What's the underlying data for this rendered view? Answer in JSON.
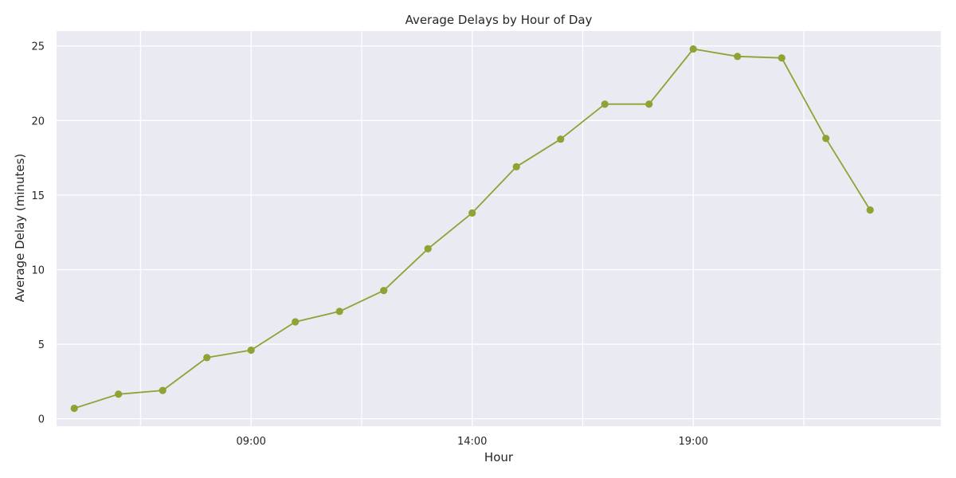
{
  "chart_data": {
    "type": "line",
    "title": "Average Delays by Hour of Day",
    "xlabel": "Hour",
    "ylabel": "Average Delay (minutes)",
    "x_tick_labels": [
      {
        "label": "09:00",
        "hour": 9
      },
      {
        "label": "14:00",
        "hour": 14
      },
      {
        "label": "19:00",
        "hour": 19
      }
    ],
    "minor_x_gridlines_hours": [
      6.5,
      11.5,
      16.5,
      21.5
    ],
    "y_ticks": [
      0,
      5,
      10,
      15,
      20,
      25
    ],
    "xlim_hours": [
      4.6,
      24.6
    ],
    "ylim": [
      -0.5,
      26
    ],
    "grid": true,
    "background_color": "#eaeaf2",
    "series": [
      {
        "color": "#8fa234",
        "x_hours": [
          5,
          6,
          7,
          8,
          9,
          10,
          11,
          12,
          13,
          14,
          15,
          16,
          17,
          18,
          19,
          20,
          21,
          22,
          23
        ],
        "values": [
          0.7,
          1.65,
          1.9,
          4.1,
          4.6,
          6.5,
          7.2,
          8.6,
          11.4,
          13.8,
          16.9,
          18.75,
          21.1,
          21.1,
          24.8,
          24.3,
          24.2,
          18.8,
          14.0
        ]
      }
    ]
  }
}
